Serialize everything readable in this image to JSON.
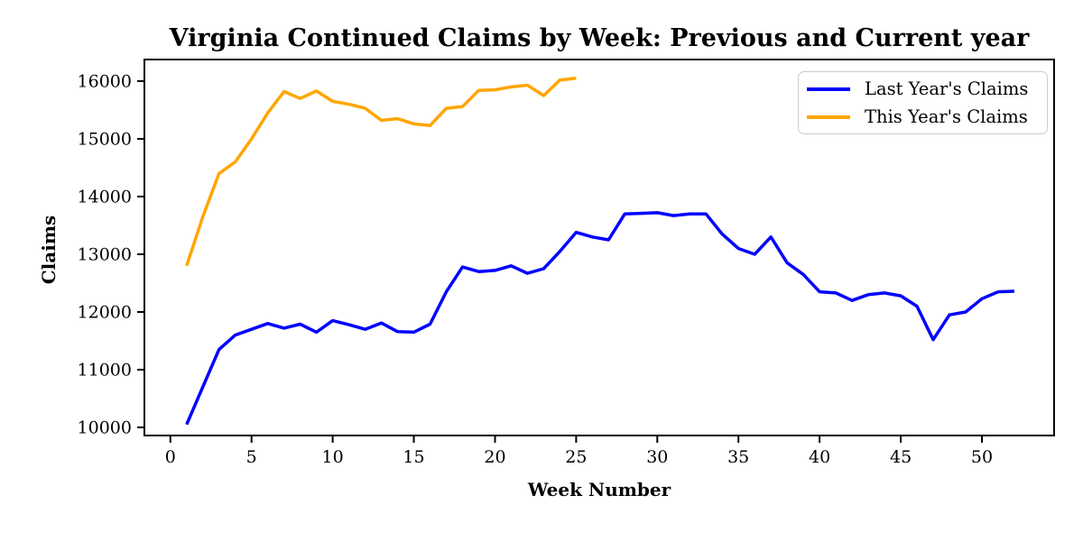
{
  "chart_data": {
    "type": "line",
    "title": "Virginia Continued Claims by Week: Previous and Current year",
    "xlabel": "Week Number",
    "ylabel": "Claims",
    "x_ticks": [
      0,
      5,
      10,
      15,
      20,
      25,
      30,
      35,
      40,
      45,
      50
    ],
    "y_ticks": [
      10000,
      11000,
      12000,
      13000,
      14000,
      15000,
      16000
    ],
    "xlim": [
      -1.6,
      54.45
    ],
    "ylim": [
      9860,
      16375
    ],
    "grid": false,
    "legend_position": "upper right",
    "line_width": 3.5,
    "axis_color": "#000000",
    "background": "#ffffff",
    "series": [
      {
        "name": "Last Year's Claims",
        "color": "#0000ff",
        "x": [
          1,
          2,
          3,
          4,
          5,
          6,
          7,
          8,
          9,
          10,
          11,
          12,
          13,
          14,
          15,
          16,
          17,
          18,
          19,
          20,
          21,
          22,
          23,
          24,
          25,
          26,
          27,
          28,
          29,
          30,
          31,
          32,
          33,
          34,
          35,
          36,
          37,
          38,
          39,
          40,
          41,
          42,
          43,
          44,
          45,
          46,
          47,
          48,
          49,
          50,
          51,
          52
        ],
        "values": [
          10050,
          10700,
          11350,
          11600,
          11700,
          11800,
          11720,
          11790,
          11650,
          11850,
          11780,
          11700,
          11810,
          11660,
          11650,
          11790,
          12350,
          12780,
          12700,
          12720,
          12800,
          12670,
          12750,
          13050,
          13380,
          13300,
          13250,
          13700,
          13710,
          13720,
          13670,
          13700,
          13700,
          13350,
          13100,
          13000,
          13300,
          12850,
          12650,
          12350,
          12330,
          12200,
          12300,
          12330,
          12280,
          12100,
          11520,
          11950,
          12000,
          12230,
          12350,
          12360
        ]
      },
      {
        "name": "This Year's Claims",
        "color": "#ffa500",
        "x": [
          1,
          2,
          3,
          4,
          5,
          6,
          7,
          8,
          9,
          10,
          11,
          12,
          13,
          14,
          15,
          16,
          17,
          18,
          19,
          20,
          21,
          22,
          23,
          24,
          25
        ],
        "values": [
          12800,
          13650,
          14400,
          14600,
          15000,
          15450,
          15820,
          15700,
          15830,
          15650,
          15600,
          15530,
          15320,
          15350,
          15260,
          15230,
          15530,
          15560,
          15840,
          15850,
          15900,
          15930,
          15750,
          16020,
          16050
        ]
      }
    ]
  }
}
